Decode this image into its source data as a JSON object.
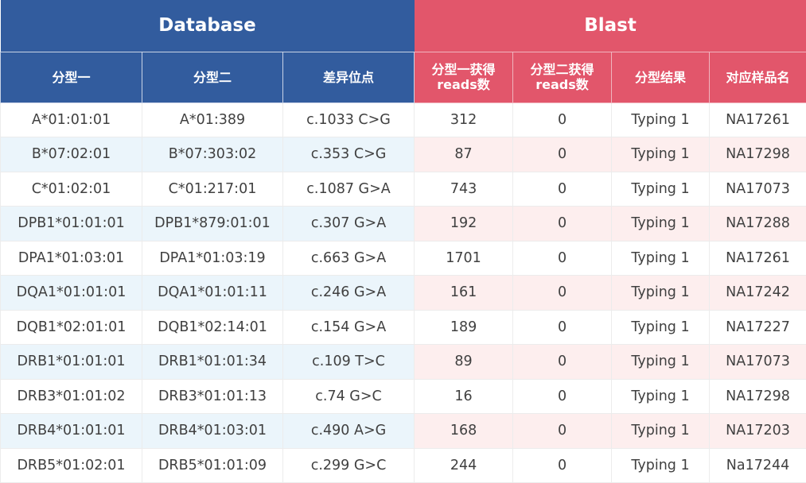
{
  "groups": {
    "database": "Database",
    "blast": "Blast"
  },
  "columns": [
    "分型一",
    "分型二",
    "差异位点",
    "分型一获得\nreads数",
    "分型二获得\nreads数",
    "分型结果",
    "对应样品名"
  ],
  "colors": {
    "database": "#325c9e",
    "blast": "#e2566b",
    "row_alt_left": "#ebf5fb",
    "row_alt_right": "#fdeeee"
  },
  "rows": [
    [
      "A*01:01:01",
      "A*01:389",
      "c.1033 C>G",
      "312",
      "0",
      "Typing 1",
      "NA17261"
    ],
    [
      "B*07:02:01",
      "B*07:303:02",
      "c.353 C>G",
      "87",
      "0",
      "Typing 1",
      "NA17298"
    ],
    [
      "C*01:02:01",
      "C*01:217:01",
      "c.1087 G>A",
      "743",
      "0",
      "Typing 1",
      "NA17073"
    ],
    [
      "DPB1*01:01:01",
      "DPB1*879:01:01",
      "c.307 G>A",
      "192",
      "0",
      "Typing 1",
      "NA17288"
    ],
    [
      "DPA1*01:03:01",
      "DPA1*01:03:19",
      "c.663 G>A",
      "1701",
      "0",
      "Typing 1",
      "NA17261"
    ],
    [
      "DQA1*01:01:01",
      "DQA1*01:01:11",
      "c.246 G>A",
      "161",
      "0",
      "Typing 1",
      "NA17242"
    ],
    [
      "DQB1*02:01:01",
      "DQB1*02:14:01",
      "c.154 G>A",
      "189",
      "0",
      "Typing 1",
      "NA17227"
    ],
    [
      "DRB1*01:01:01",
      "DRB1*01:01:34",
      "c.109 T>C",
      "89",
      "0",
      "Typing 1",
      "NA17073"
    ],
    [
      "DRB3*01:01:02",
      "DRB3*01:01:13",
      "c.74 G>C",
      "16",
      "0",
      "Typing 1",
      "NA17298"
    ],
    [
      "DRB4*01:01:01",
      "DRB4*01:03:01",
      "c.490 A>G",
      "168",
      "0",
      "Typing 1",
      "NA17203"
    ],
    [
      "DRB5*01:02:01",
      "DRB5*01:01:09",
      "c.299 G>C",
      "244",
      "0",
      "Typing 1",
      "Na17244"
    ]
  ]
}
